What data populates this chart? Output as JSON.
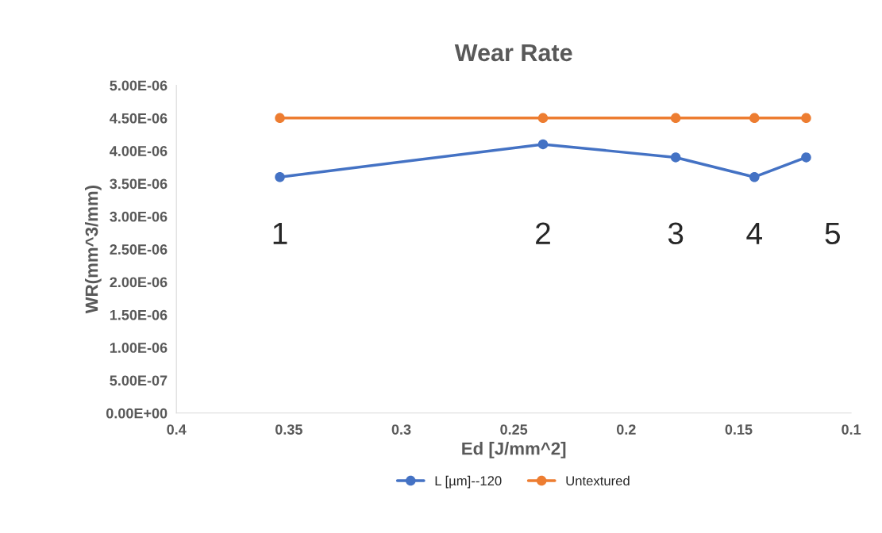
{
  "chart_data": {
    "type": "line",
    "title": "Wear Rate",
    "xlabel": "Ed [J/mm^2]",
    "ylabel": "WR(mm^3/mm)",
    "x": [
      0.354,
      0.237,
      0.178,
      0.143,
      0.12
    ],
    "series": [
      {
        "name": "L [µm]--120",
        "color": "#4472c4",
        "values": [
          3.6e-06,
          4.1e-06,
          3.9e-06,
          3.6e-06,
          3.9e-06
        ]
      },
      {
        "name": "Untextured",
        "color": "#ed7d31",
        "values": [
          4.5e-06,
          4.5e-06,
          4.5e-06,
          4.5e-06,
          4.5e-06
        ]
      }
    ],
    "xlim": [
      0.4,
      0.1
    ],
    "xticks": [
      0.4,
      0.35,
      0.3,
      0.25,
      0.2,
      0.15,
      0.1
    ],
    "ylim": [
      0,
      5e-06
    ],
    "yticks": [
      {
        "value": 0,
        "label": "0.00E+00"
      },
      {
        "value": 5e-07,
        "label": "5.00E-07"
      },
      {
        "value": 1e-06,
        "label": "1.00E-06"
      },
      {
        "value": 1.5e-06,
        "label": "1.50E-06"
      },
      {
        "value": 2e-06,
        "label": "2.00E-06"
      },
      {
        "value": 2.5e-06,
        "label": "2.50E-06"
      },
      {
        "value": 3e-06,
        "label": "3.00E-06"
      },
      {
        "value": 3.5e-06,
        "label": "3.50E-06"
      },
      {
        "value": 4e-06,
        "label": "4.00E-06"
      },
      {
        "value": 4.5e-06,
        "label": "4.50E-06"
      },
      {
        "value": 5e-06,
        "label": "5.00E-06"
      }
    ],
    "annotations": [
      "1",
      "2",
      "3",
      "4",
      "5"
    ],
    "grid": false,
    "legend": "bottom",
    "marker": "circle",
    "line_style": "solid"
  }
}
